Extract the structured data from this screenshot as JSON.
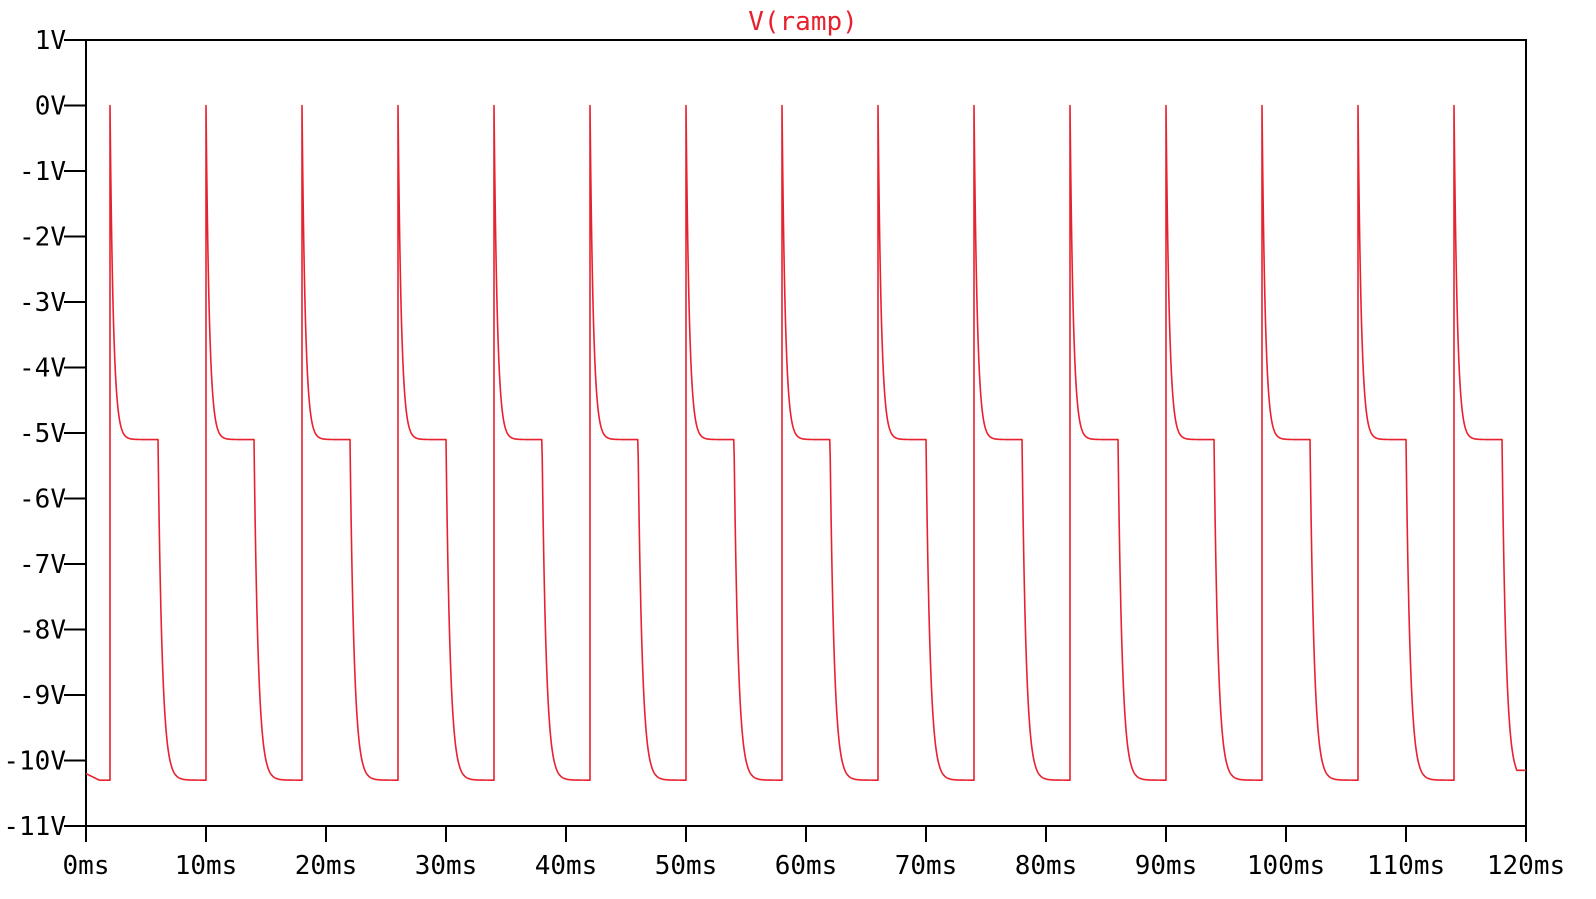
{
  "chart_data": {
    "type": "line",
    "title": "V(ramp)",
    "xlabel": "",
    "ylabel": "",
    "x_unit": "ms",
    "y_unit": "V",
    "xlim": [
      0,
      120
    ],
    "ylim": [
      -11,
      1
    ],
    "x_ticks": [
      "0ms",
      "10ms",
      "20ms",
      "30ms",
      "40ms",
      "50ms",
      "60ms",
      "70ms",
      "80ms",
      "90ms",
      "100ms",
      "110ms",
      "120ms"
    ],
    "y_ticks": [
      "1V",
      "0V",
      "-1V",
      "-2V",
      "-3V",
      "-4V",
      "-5V",
      "-6V",
      "-7V",
      "-8V",
      "-9V",
      "-10V",
      "-11V"
    ],
    "grid": false,
    "series": [
      {
        "color": "#e8212e",
        "period_ms": 8,
        "spike_times_ms": [
          2,
          10,
          18,
          26,
          34,
          42,
          50,
          58,
          66,
          74,
          82,
          90,
          98,
          106,
          114
        ],
        "peak_V": 0,
        "plateau_V": -5.1,
        "plateau_end_offset_ms": 4,
        "floor_V": -10.3,
        "start_V": -10.2,
        "end_V": -10.15
      }
    ]
  }
}
